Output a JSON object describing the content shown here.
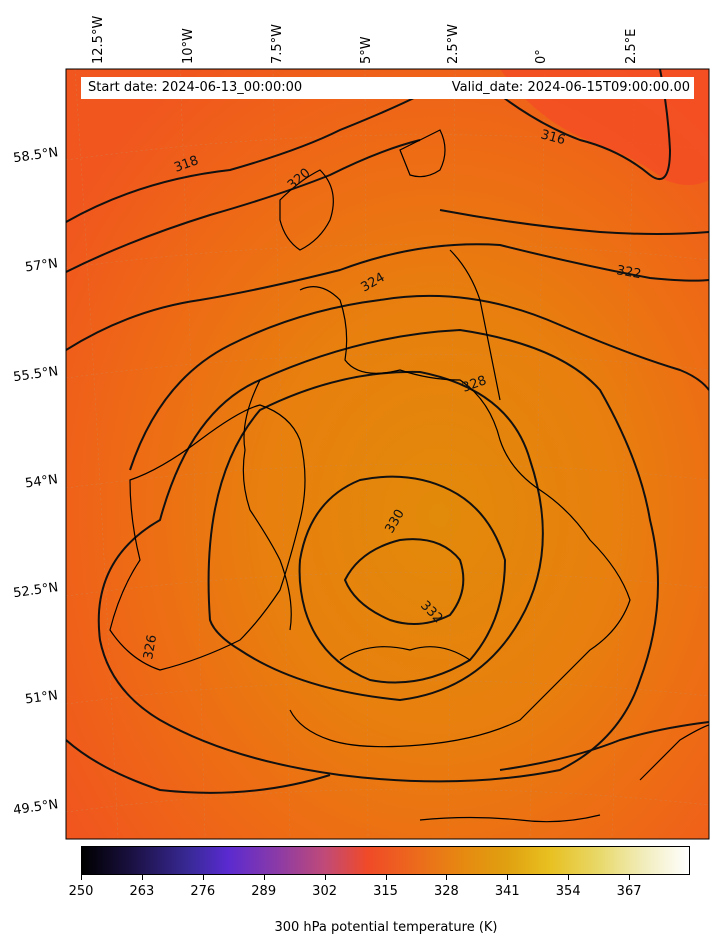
{
  "map": {
    "top_labels": {
      "start_date": "Start date: 2024-06-13_00:00:00",
      "valid_date": "Valid_date: 2024-06-15T09:00:00.00"
    },
    "lon_labels": [
      "12.5°W",
      "10°W",
      "7.5°W",
      "5°W",
      "2.5°W",
      "0°",
      "2.5°E"
    ],
    "lat_labels": [
      "58.5°N",
      "57°N",
      "55.5°N",
      "54°N",
      "52.5°N",
      "51°N",
      "49.5°N"
    ],
    "contour_labels": [
      "316",
      "318",
      "320",
      "322",
      "324",
      "326",
      "328",
      "330",
      "332"
    ],
    "fill_colors": {
      "outer": "#f0561e",
      "mid": "#ee6a15",
      "inner": "#e87f0e",
      "core": "#e28a09",
      "contour": "#111111",
      "coast": "#000000"
    }
  },
  "colorbar": {
    "ticks": [
      "250",
      "263",
      "276",
      "289",
      "302",
      "315",
      "328",
      "341",
      "354",
      "367"
    ],
    "title": "300 hPa potential temperature (K)"
  }
}
